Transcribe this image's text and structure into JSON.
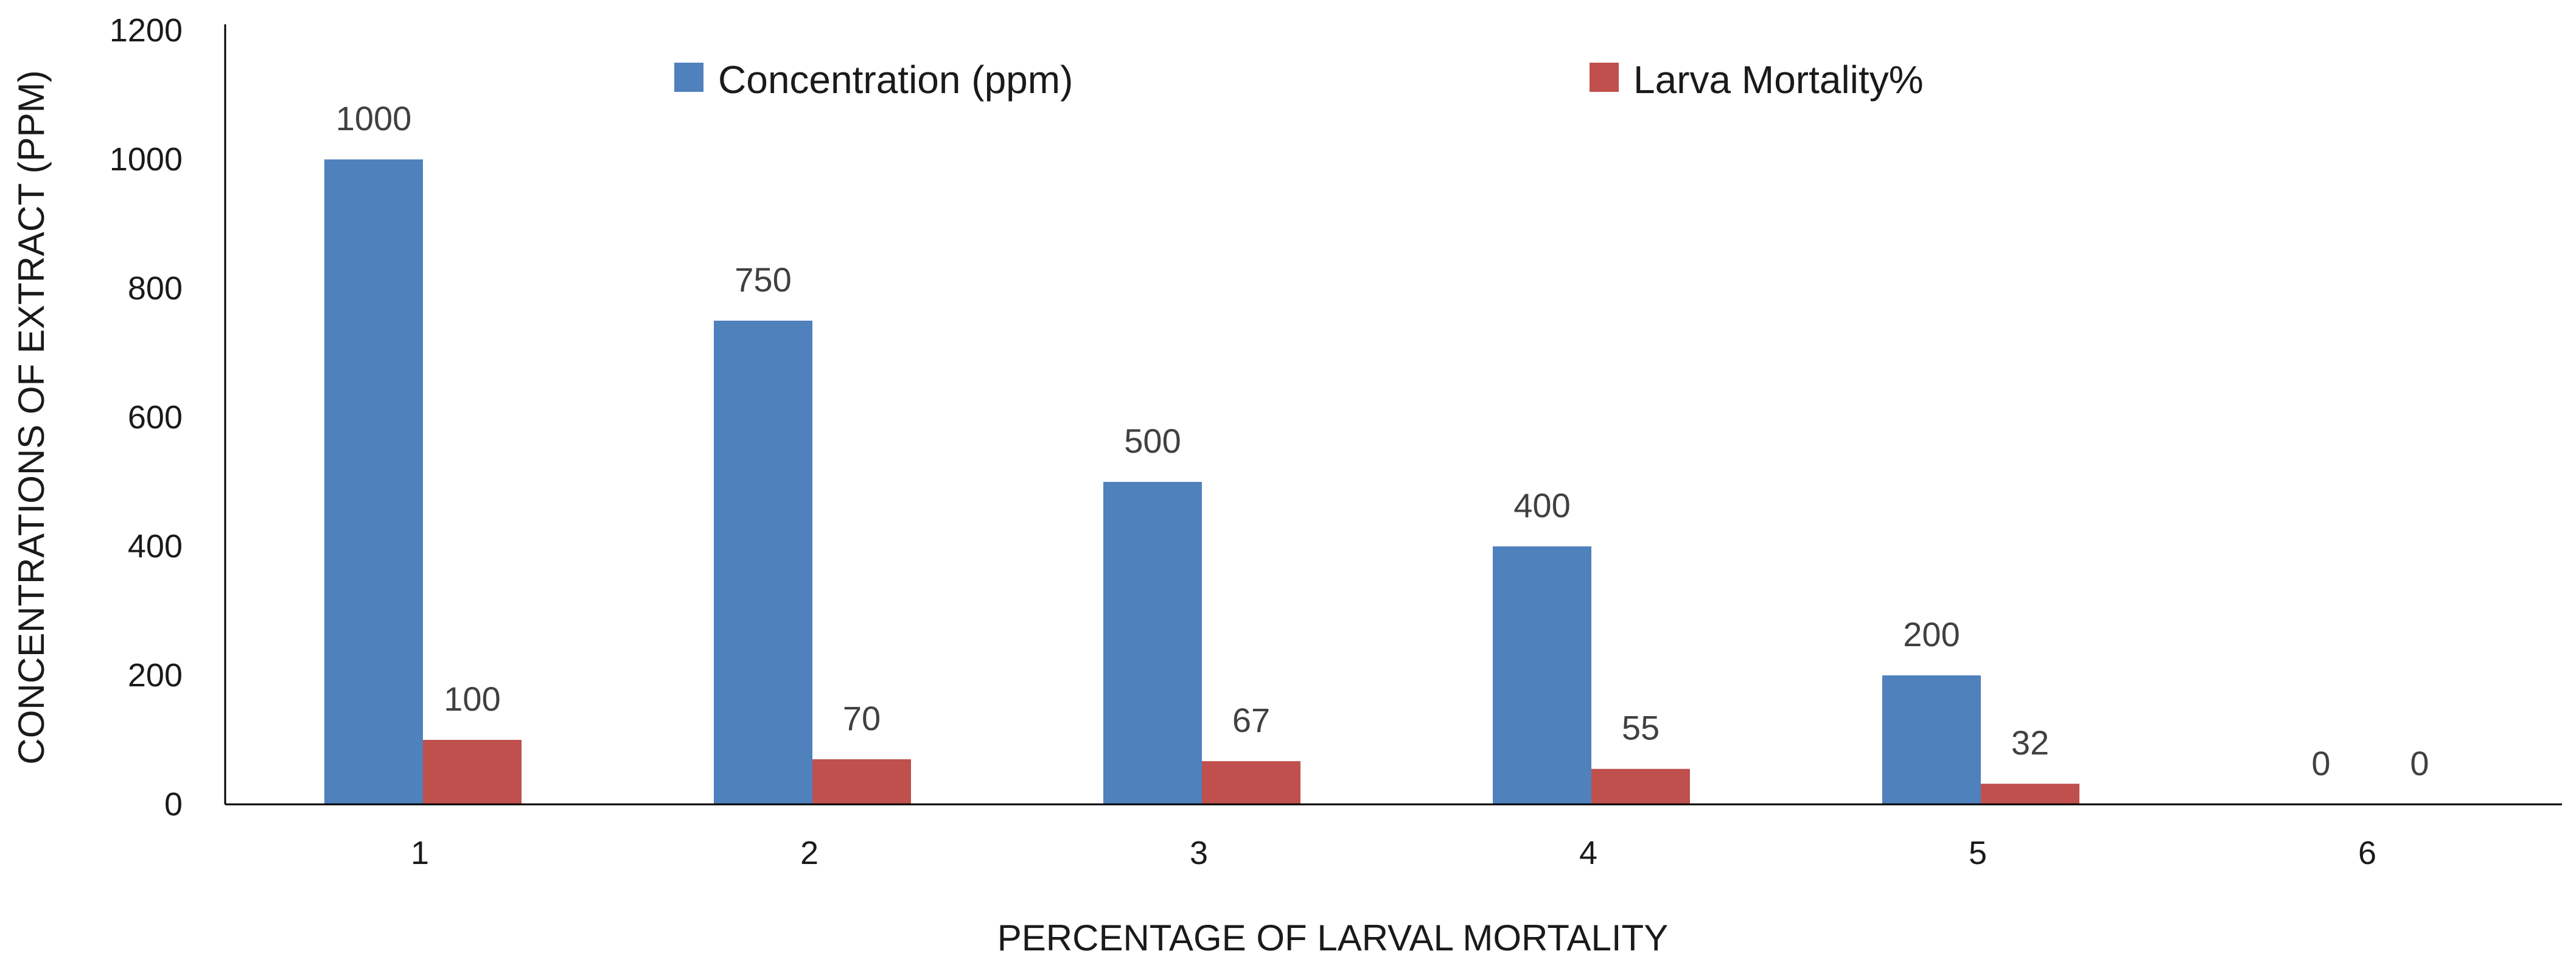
{
  "chart_data": {
    "type": "bar",
    "title": "",
    "xlabel": "PERCENTAGE OF LARVAL MORTALITY",
    "ylabel": "CONCENTRATIONS OF EXTRACT (PPM)",
    "categories": [
      "1",
      "2",
      "3",
      "4",
      "5",
      "6"
    ],
    "series": [
      {
        "name": "Concentration (ppm)",
        "color": "#4f81bd",
        "values": [
          1000,
          750,
          500,
          400,
          200,
          0
        ]
      },
      {
        "name": "Larva Mortality%",
        "color": "#c0504d",
        "values": [
          100,
          70,
          67,
          55,
          32,
          0
        ]
      }
    ],
    "ylim": [
      0,
      1200
    ],
    "yticks": [
      0,
      200,
      400,
      600,
      800,
      1000,
      1200
    ],
    "grid": false,
    "legend": "top-center"
  }
}
